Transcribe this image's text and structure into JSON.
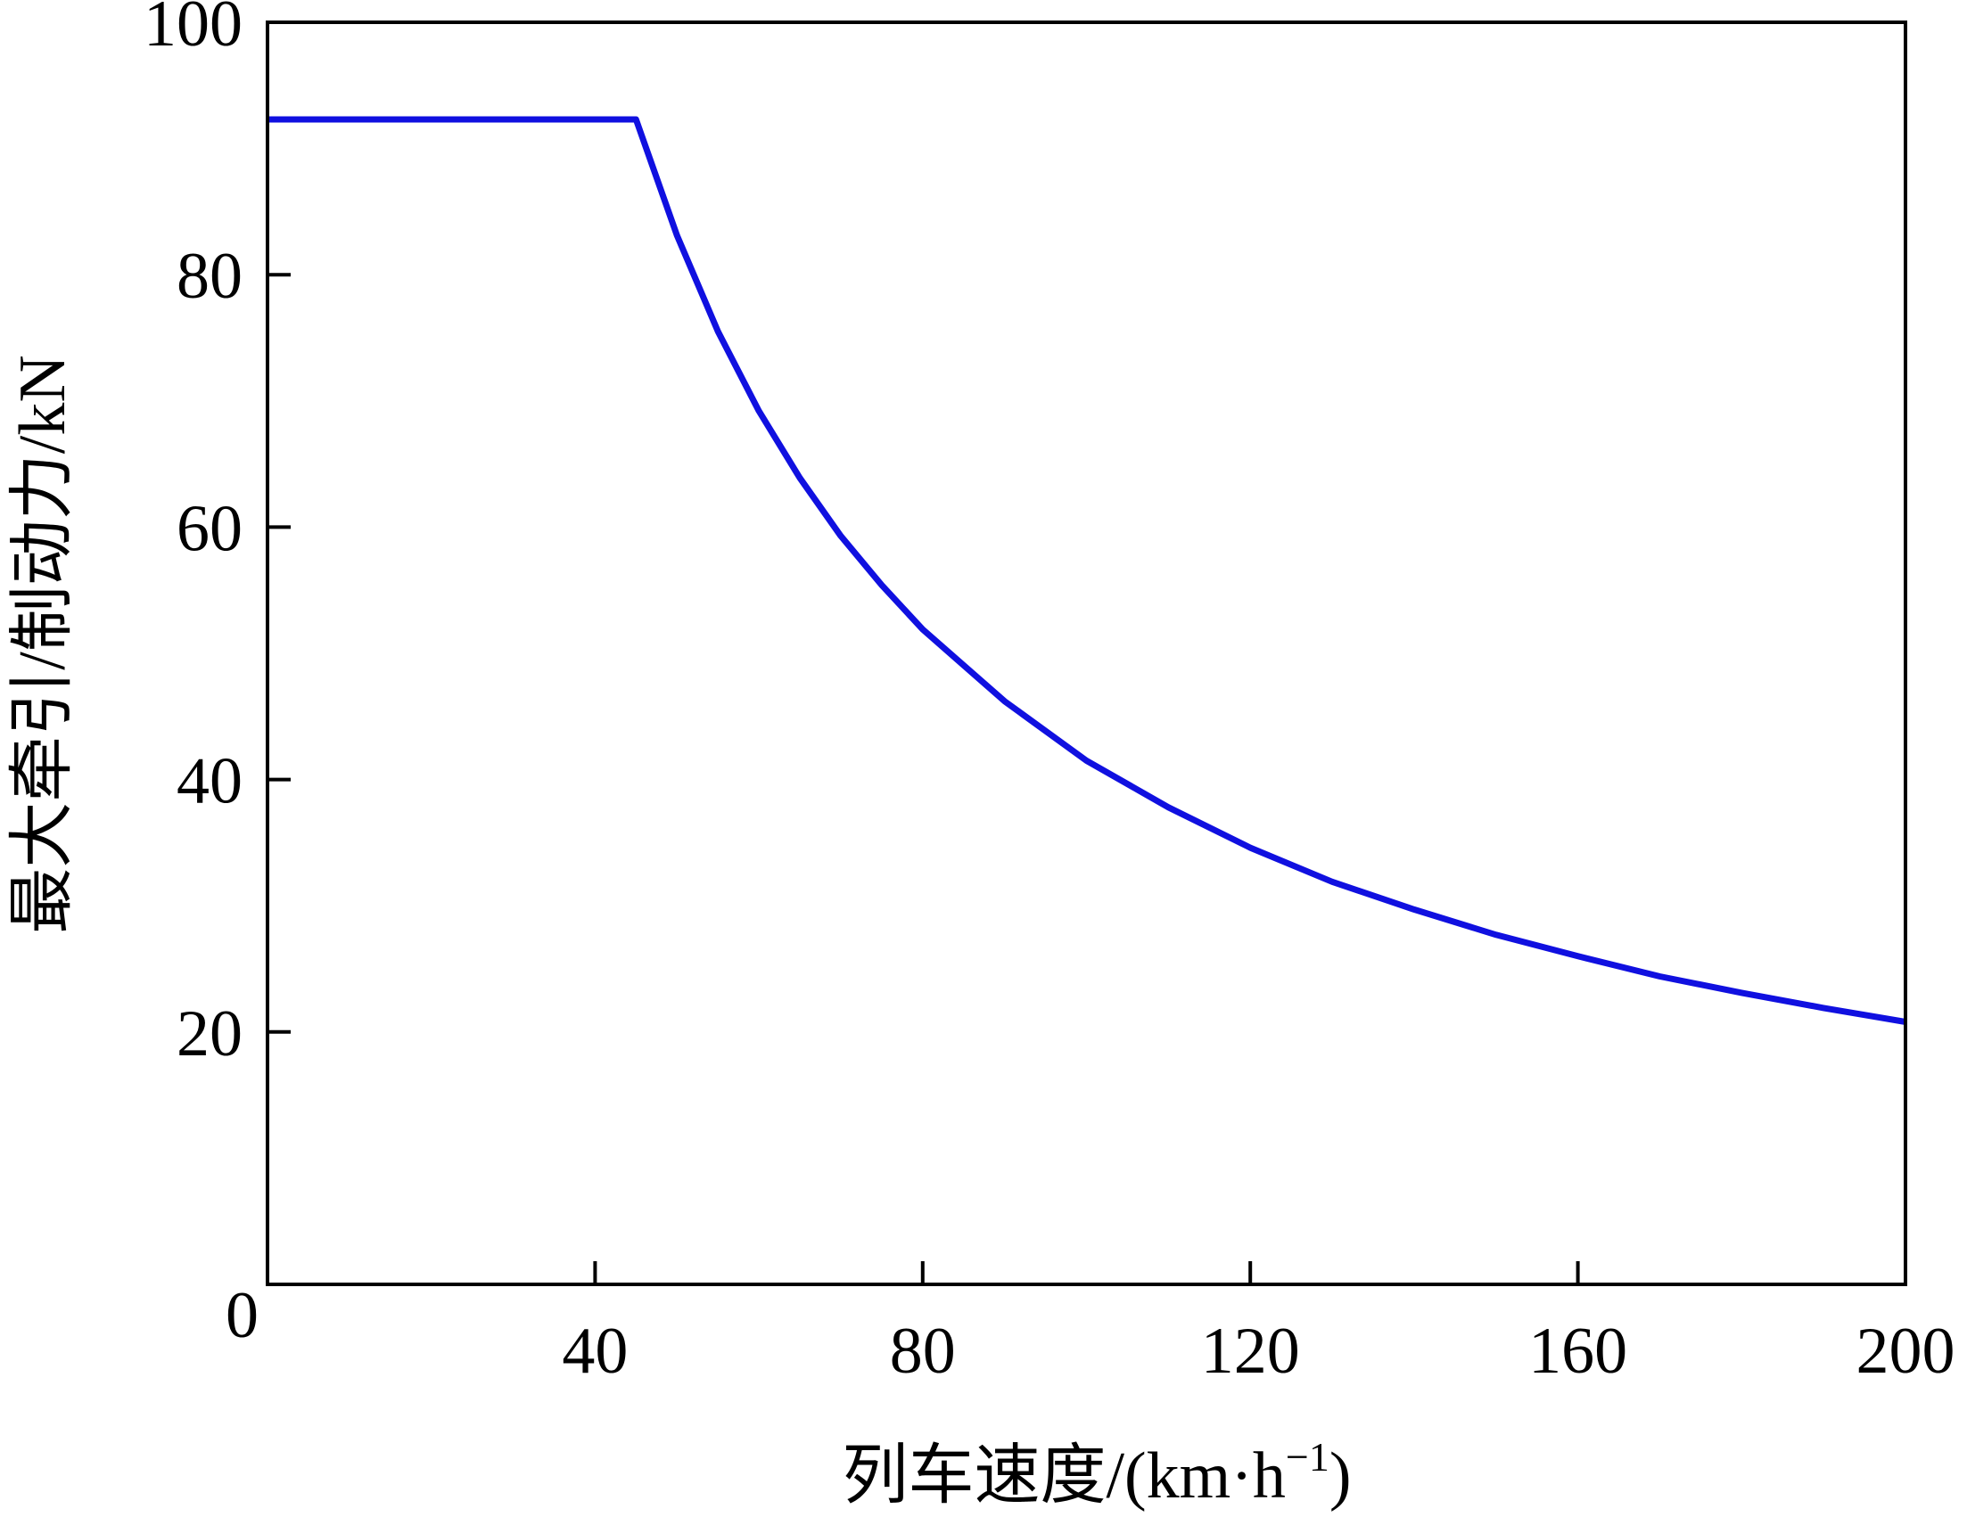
{
  "chart_data": {
    "type": "line",
    "title": "",
    "xlabel": "列车速度/(km·h",
    "xlabel_sup": "−1",
    "xlabel_close": ")",
    "ylabel": "最大牵引/制动力/kN",
    "xlim": [
      0,
      200
    ],
    "ylim": [
      0,
      100
    ],
    "x_ticks": [
      {
        "value": 40,
        "label": "40"
      },
      {
        "value": 80,
        "label": "80"
      },
      {
        "value": 120,
        "label": "120"
      },
      {
        "value": 160,
        "label": "160"
      },
      {
        "value": 200,
        "label": "200"
      }
    ],
    "y_ticks": [
      {
        "value": 0,
        "label": "0"
      },
      {
        "value": 20,
        "label": "20"
      },
      {
        "value": 40,
        "label": "40"
      },
      {
        "value": 60,
        "label": "60"
      },
      {
        "value": 80,
        "label": "80"
      },
      {
        "value": 100,
        "label": "100"
      }
    ],
    "grid": false,
    "legend": "none",
    "series": [
      {
        "color": "#1010e0",
        "x": [
          0,
          45,
          50,
          55,
          60,
          65,
          70,
          75,
          80,
          90,
          100,
          110,
          120,
          130,
          140,
          150,
          160,
          170,
          180,
          190,
          200
        ],
        "y": [
          92.3,
          92.3,
          83.1,
          75.5,
          69.2,
          63.9,
          59.3,
          55.4,
          51.9,
          46.2,
          41.5,
          37.8,
          34.6,
          31.9,
          29.7,
          27.7,
          26.0,
          24.4,
          23.1,
          21.9,
          20.8
        ]
      }
    ]
  }
}
